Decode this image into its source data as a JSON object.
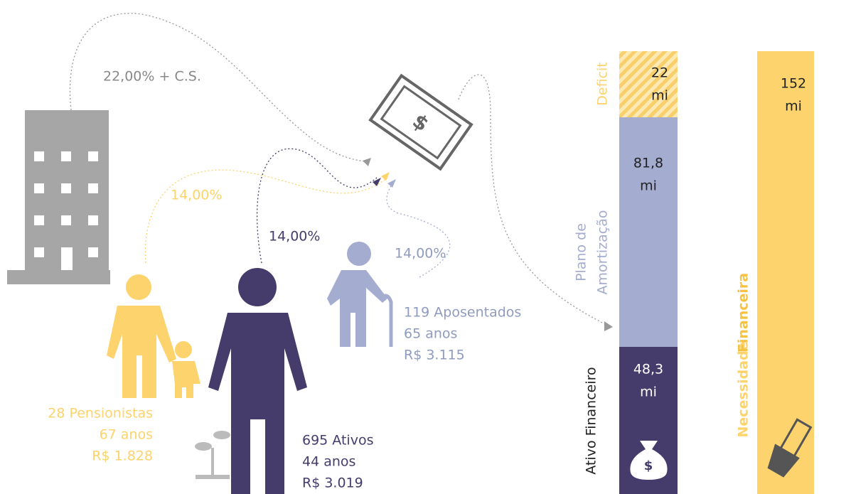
{
  "flows": {
    "employer": "22,00% + C.S.",
    "pensioners": "14,00%",
    "active": "14,00%",
    "retirees": "14,00%"
  },
  "groups": {
    "retirees": [
      "119 Aposentados",
      "65 anos",
      "R$ 3.115"
    ],
    "pensioners": [
      "28 Pensionistas",
      "67 anos",
      "R$ 1.828"
    ],
    "active": [
      "695 Ativos",
      "44 anos",
      "R$ 3.019"
    ]
  },
  "columns": {
    "deficit": {
      "label": "Deficit",
      "value": [
        "22",
        "mi"
      ]
    },
    "amortization": {
      "label": [
        "Plano de",
        "Amortização"
      ],
      "value": [
        "81,8",
        "mi"
      ]
    },
    "assets": {
      "label": "Ativo Financeiro",
      "value": [
        "48,3",
        "mi"
      ]
    },
    "need": {
      "label": [
        "Necessidade",
        "Financeira"
      ],
      "value": [
        "152",
        "mi"
      ]
    }
  }
}
